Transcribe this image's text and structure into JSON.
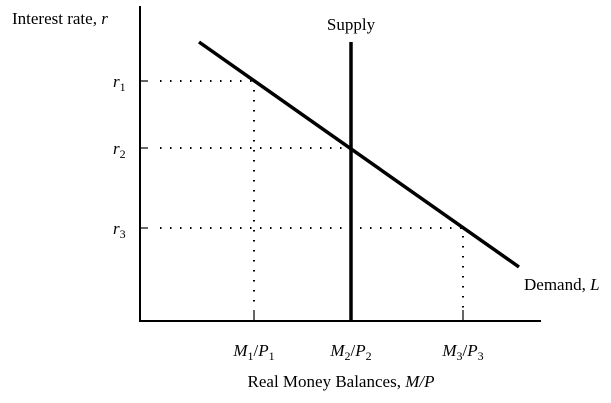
{
  "y_axis_label": {
    "text": "Interest rate, ",
    "var": "r"
  },
  "x_axis_label": {
    "text": "Real Money Balances, ",
    "var": "M/P"
  },
  "supply_label": "Supply",
  "demand_label": {
    "text": "Demand, ",
    "var": "L"
  },
  "y_ticks": [
    {
      "base": "r",
      "sub": "1"
    },
    {
      "base": "r",
      "sub": "2"
    },
    {
      "base": "r",
      "sub": "3"
    }
  ],
  "x_ticks": [
    {
      "m": "M",
      "msub": "1",
      "p": "P",
      "psub": "1"
    },
    {
      "m": "M",
      "msub": "2",
      "p": "P",
      "psub": "2"
    },
    {
      "m": "M",
      "msub": "3",
      "p": "P",
      "psub": "3"
    }
  ],
  "colors": {
    "line": "#000000",
    "background": "#ffffff"
  }
}
